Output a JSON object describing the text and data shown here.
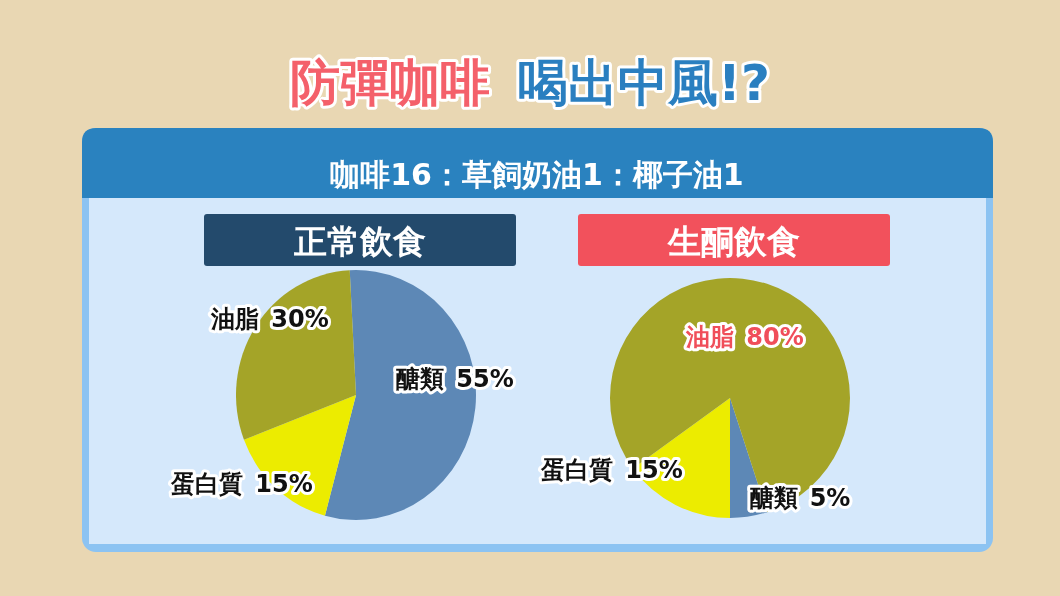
{
  "chart_data": [
    {
      "type": "other",
      "title": "防彈咖啡",
      "subtitle": "喝出中風!?",
      "annotations": [
        "咖啡16：草飼奶油1：椰子油1"
      ]
    },
    {
      "type": "pie",
      "title": "正常飲食",
      "categories": [
        "醣類",
        "蛋白質",
        "油脂"
      ],
      "values": [
        55,
        15,
        30
      ],
      "colors": [
        "#5d88b6",
        "#ecec00",
        "#a4a428"
      ],
      "value_labels": [
        "55%",
        "15%",
        "30%"
      ]
    },
    {
      "type": "pie",
      "title": "生酮飲食",
      "categories": [
        "醣類",
        "蛋白質",
        "油脂"
      ],
      "values": [
        5,
        15,
        80
      ],
      "colors": [
        "#5d88b6",
        "#ecec00",
        "#a4a428"
      ],
      "value_labels": [
        "5%",
        "15%",
        "80%"
      ]
    }
  ]
}
